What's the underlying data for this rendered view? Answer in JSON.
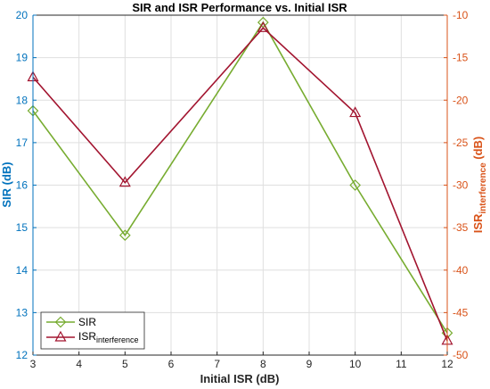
{
  "chart_data": {
    "type": "line",
    "title": "SIR and ISR Performance vs. Initial ISR",
    "xlabel": "Initial ISR (dB)",
    "xlim": [
      3,
      12
    ],
    "xticks": [
      "3",
      "4",
      "5",
      "6",
      "7",
      "8",
      "9",
      "10",
      "11",
      "12"
    ],
    "x": [
      3,
      5,
      8,
      10,
      12
    ],
    "grid": true,
    "legend_position": "bottom-left",
    "left_axis": {
      "label": "SIR (dB)",
      "ylim": [
        12,
        20
      ],
      "ticks": [
        "12",
        "13",
        "14",
        "15",
        "16",
        "17",
        "18",
        "19",
        "20"
      ],
      "color": "#0072BD"
    },
    "right_axis": {
      "label_main": "ISR",
      "label_sub": "interference",
      "label_unit": " (dB)",
      "ylim": [
        -50,
        -10
      ],
      "ticks": [
        "-10",
        "-15",
        "-20",
        "-25",
        "-30",
        "-35",
        "-40",
        "-45",
        "-50"
      ],
      "color": "#D95319"
    },
    "series": [
      {
        "name": "SIR",
        "axis": "left",
        "color": "#77AC30",
        "marker": "diamond",
        "values": [
          17.75,
          14.82,
          19.83,
          16.0,
          12.52
        ]
      },
      {
        "name": "ISR",
        "name_sub": "interference",
        "axis": "right",
        "color": "#A2142F",
        "marker": "triangle",
        "values": [
          -17.3,
          -29.7,
          -11.5,
          -21.5,
          -48.3
        ]
      }
    ]
  }
}
